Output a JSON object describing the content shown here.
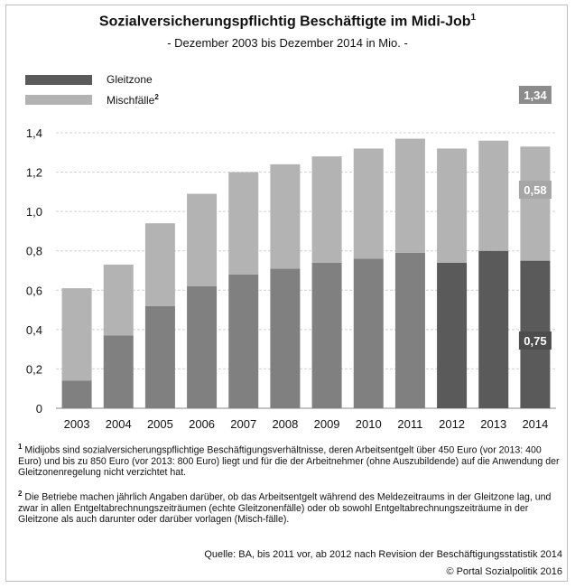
{
  "title": "Sozialversicherungspflichtig Beschäftigte im Midi-Job",
  "title_footnote_mark": "1",
  "subtitle": "- Dezember 2003 bis Dezember 2014 in Mio. -",
  "legend": {
    "gleitzone": "Gleitzone",
    "mischfaelle": "Mischfälle",
    "mischfaelle_mark": "2"
  },
  "colors": {
    "gleitzone_pre2012": "#808080",
    "gleitzone_post2012": "#5a5a5a",
    "mischfaelle": "#b3b3b3",
    "label_dark": "#4d4d4d",
    "label_mid": "#8c8c8c",
    "label_light": "#a6a6a6",
    "grid": "#d0d0d0"
  },
  "chart_data": {
    "type": "bar",
    "stacked": true,
    "categories": [
      "2003",
      "2004",
      "2005",
      "2006",
      "2007",
      "2008",
      "2009",
      "2010",
      "2011",
      "2012",
      "2013",
      "2014"
    ],
    "series": [
      {
        "name": "Gleitzone",
        "values": [
          0.14,
          0.37,
          0.52,
          0.62,
          0.68,
          0.71,
          0.74,
          0.76,
          0.79,
          0.74,
          0.8,
          0.75
        ]
      },
      {
        "name": "Mischfälle",
        "values": [
          0.47,
          0.36,
          0.42,
          0.47,
          0.52,
          0.53,
          0.54,
          0.56,
          0.58,
          0.58,
          0.56,
          0.58
        ]
      }
    ],
    "ylim": [
      0,
      1.4
    ],
    "yticks": [
      "0",
      "0,2",
      "0,4",
      "0,6",
      "0,8",
      "1,0",
      "1,2",
      "1,4"
    ],
    "grid": true,
    "annotations": {
      "total": "1,34",
      "mischfaelle": "0,58",
      "gleitzone": "0,75"
    }
  },
  "footnotes": [
    {
      "mark": "1",
      "text": "Midijobs sind sozialversicherungspflichtige Beschäftigungsverhältnisse, deren Arbeitsentgelt über 450 Euro (vor 2013: 400 Euro) und bis zu 850 Euro (vor 2013: 800 Euro) liegt und für die der Arbeitnehmer (ohne Auszubildende) auf die Anwendung der Gleitzonenregelung nicht verzichtet hat."
    },
    {
      "mark": "2",
      "text": "Die Betriebe machen jährlich Angaben darüber, ob das Arbeitsentgelt während des Meldezeitraums in der Gleitzone lag, und zwar in allen Entgeltabrechnungszeiträumen (echte Gleitzonenfälle) oder ob sowohl Entgeltabrechnungszeiträume in der Gleitzone als auch darunter oder darüber vorlagen (Misch-fälle)."
    }
  ],
  "source": "Quelle: BA, bis 2011 vor, ab 2012 nach Revision der Beschäftigungsstatistik 2014",
  "copyright": "© Portal Sozialpolitik 2016"
}
